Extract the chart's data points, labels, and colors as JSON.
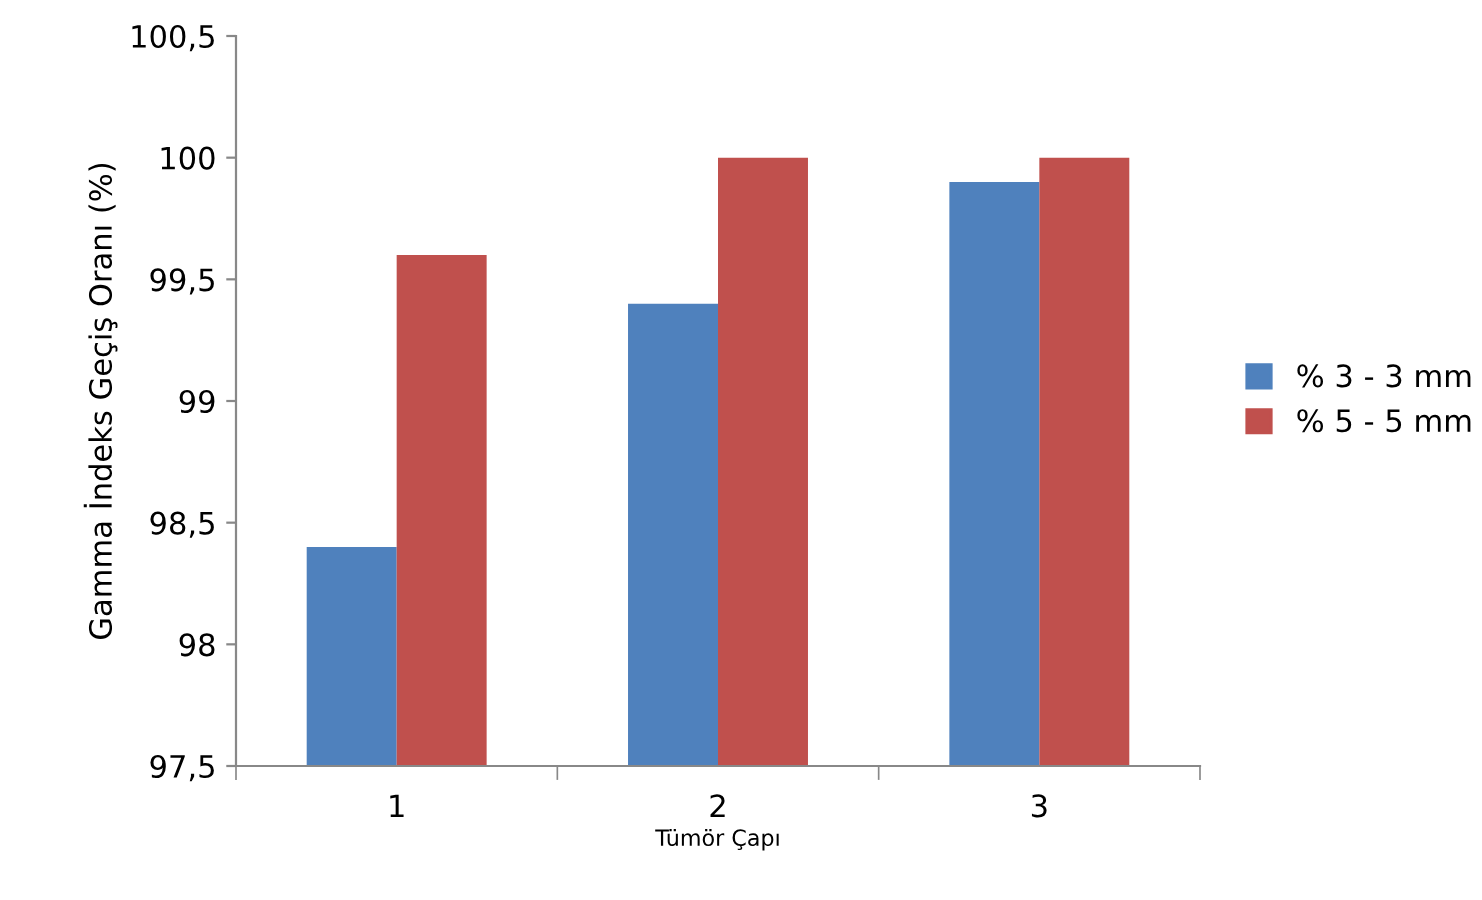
{
  "chart_data": {
    "type": "bar",
    "xlabel": "Tümör Çapı",
    "ylabel": "Gamma İndeks Geçiş Oranı (%)",
    "categories": [
      "1",
      "2",
      "3"
    ],
    "series": [
      {
        "name": "% 3 - 3 mm",
        "color": "#4f81bd",
        "values": [
          98.4,
          99.4,
          99.9
        ]
      },
      {
        "name": "% 5 - 5 mm",
        "color": "#c0504d",
        "values": [
          99.6,
          100,
          100
        ]
      }
    ],
    "ylim": [
      97.5,
      100.5
    ],
    "yticks": [
      {
        "value": 97.5,
        "label": "97,5"
      },
      98,
      {
        "value": 98.5,
        "label": "98,5"
      },
      99,
      {
        "value": 99.5,
        "label": "99,5"
      },
      100,
      {
        "value": 100.5,
        "label": "100,5"
      }
    ],
    "legend": "right",
    "grid": false
  }
}
